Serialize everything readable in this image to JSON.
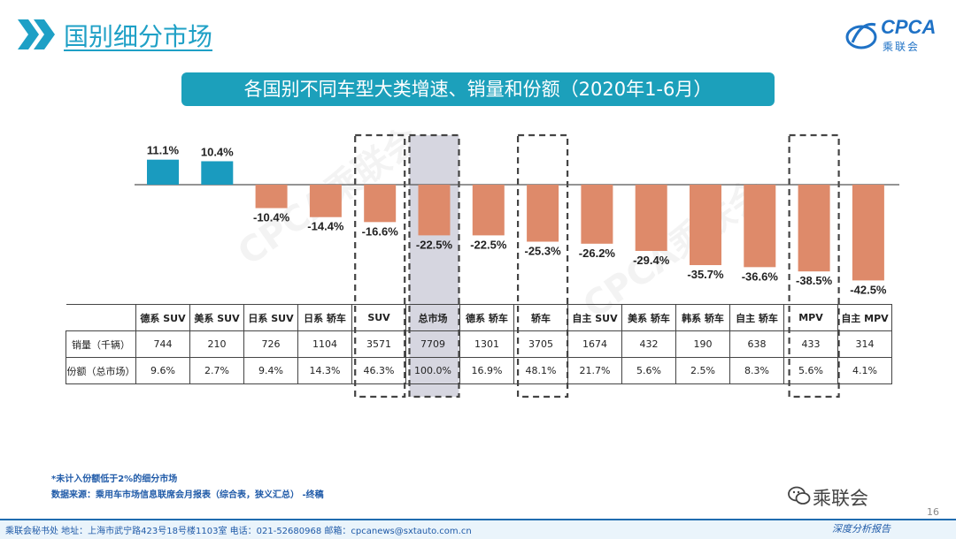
{
  "header": {
    "title": "国别细分市场"
  },
  "logo": {
    "text": "CPCA",
    "subtext": "乘联会"
  },
  "banner": {
    "text": "各国别不同车型大类增速、销量和份额（2020年1-6月）"
  },
  "colors": {
    "positive": "#1a9bbf",
    "negative": "#de8a6a",
    "highlight_bg": "#d6d6e0",
    "accent": "#1ca0bb"
  },
  "chart_data": {
    "type": "bar",
    "categories": [
      "德系 SUV",
      "美系 SUV",
      "日系 SUV",
      "日系 轿车",
      "SUV",
      "总市场",
      "德系 轿车",
      "轿车",
      "自主 SUV",
      "美系 轿车",
      "韩系 轿车",
      "自主 轿车",
      "MPV",
      "自主 MPV"
    ],
    "series": [
      {
        "values": [
          11.1,
          10.4,
          -10.4,
          -14.4,
          -16.6,
          -22.5,
          -22.5,
          -25.3,
          -26.2,
          -29.4,
          -35.7,
          -36.6,
          -38.5,
          -42.5
        ]
      }
    ],
    "data_labels": [
      "11.1%",
      "10.4%",
      "-10.4%",
      "-14.4%",
      "-16.6%",
      "-22.5%",
      "-22.5%",
      "-25.3%",
      "-26.2%",
      "-29.4%",
      "-35.7%",
      "-36.6%",
      "-38.5%",
      "-42.5%"
    ],
    "highlighted": [
      "SUV",
      "总市场",
      "轿车",
      "MPV"
    ],
    "shaded": [
      "总市场"
    ],
    "unit": "%"
  },
  "table": {
    "rows": [
      {
        "label": "销量（千辆）",
        "values": [
          "744",
          "210",
          "726",
          "1104",
          "3571",
          "7709",
          "1301",
          "3705",
          "1674",
          "432",
          "190",
          "638",
          "433",
          "314"
        ]
      },
      {
        "label": "份额（总市场）",
        "values": [
          "9.6%",
          "2.7%",
          "9.4%",
          "14.3%",
          "46.3%",
          "100.0%",
          "16.9%",
          "48.1%",
          "21.7%",
          "5.6%",
          "2.5%",
          "8.3%",
          "5.6%",
          "4.1%"
        ]
      }
    ]
  },
  "notes": {
    "footnote": "*未计入份额低于2%的细分市场",
    "source": "数据来源：乘用车市场信息联席会月报表（综合表，狭义汇总）  -终稿"
  },
  "wechat": {
    "name": "乘联会"
  },
  "page_number": "16",
  "footer": {
    "text": "乘联会秘书处    地址：上海市武宁路423号18号楼1103室    电话：021-52680968    邮箱：cpcanews@sxtauto.com.cn",
    "tag": "深度分析报告"
  }
}
